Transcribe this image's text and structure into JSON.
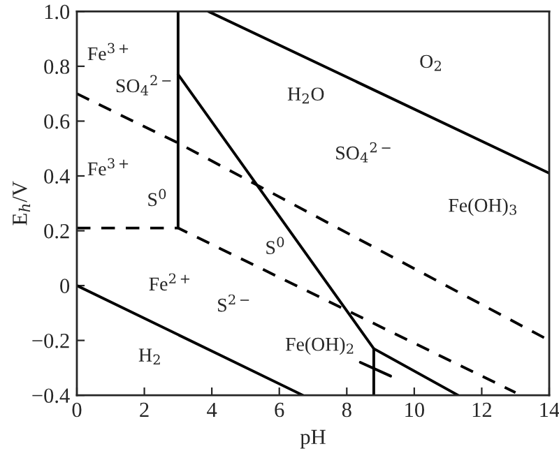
{
  "chart_data": {
    "type": "line",
    "xlabel": "pH",
    "ylabel": "E$_{h}$/V",
    "xlim": [
      0,
      14
    ],
    "ylim": [
      -0.4,
      1.0
    ],
    "xticks": [
      0,
      2,
      4,
      6,
      8,
      10,
      12,
      14
    ],
    "yticks": [
      {
        "value": -0.4,
        "label": "−0.4"
      },
      {
        "value": -0.2,
        "label": "−0.2"
      },
      0,
      {
        "value": 0.2,
        "label": "0.2"
      },
      {
        "value": 0.4,
        "label": "0.4"
      },
      {
        "value": 0.6,
        "label": "0.6"
      },
      {
        "value": 0.8,
        "label": "0.8"
      },
      {
        "value": 1.0,
        "label": "1.0"
      }
    ],
    "grid": false,
    "legend": false,
    "marker": "none",
    "series": [
      {
        "color": "#000000",
        "line_style": "solid",
        "x": [
          3.9,
          14
        ],
        "values": [
          1.0,
          0.41
        ]
      },
      {
        "color": "#000000",
        "line_style": "solid",
        "x": [
          0,
          6.7
        ],
        "values": [
          0,
          -0.4
        ]
      },
      {
        "color": "#000000",
        "line_style": "solid",
        "x": [
          3,
          3
        ],
        "values": [
          0.21,
          1.0
        ]
      },
      {
        "color": "#000000",
        "line_style": "solid",
        "x": [
          3,
          8.8,
          11.3
        ],
        "values": [
          0.77,
          -0.23,
          -0.4
        ]
      },
      {
        "color": "#000000",
        "line_style": "solid",
        "x": [
          8.8,
          8.8
        ],
        "values": [
          -0.23,
          -0.4
        ]
      },
      {
        "color": "#000000",
        "line_style": "solid",
        "x": [
          8.4,
          9.3
        ],
        "values": [
          -0.28,
          -0.33
        ]
      },
      {
        "color": "#000000",
        "line_style": "dashed",
        "x": [
          0,
          3,
          14
        ],
        "values": [
          0.7,
          0.52,
          -0.2
        ]
      },
      {
        "color": "#000000",
        "line_style": "dashed",
        "x": [
          0,
          3,
          13.0
        ],
        "values": [
          0.21,
          0.21,
          -0.39
        ]
      }
    ],
    "annotations": [
      "Fe$^{3+}$",
      "SO$_{4}$$^{2−}$",
      "Fe$^{3+}$",
      "S$^{0}$",
      "O$_{2}$",
      "H$_{2}$O",
      "SO$_{4}$$^{2−}$",
      "Fe(OH)$_{3}$",
      "S$^{0}$",
      "Fe$^{2+}$",
      "S$^{2−}$",
      "H$_{2}$",
      "Fe(OH)$_{2}$"
    ]
  }
}
